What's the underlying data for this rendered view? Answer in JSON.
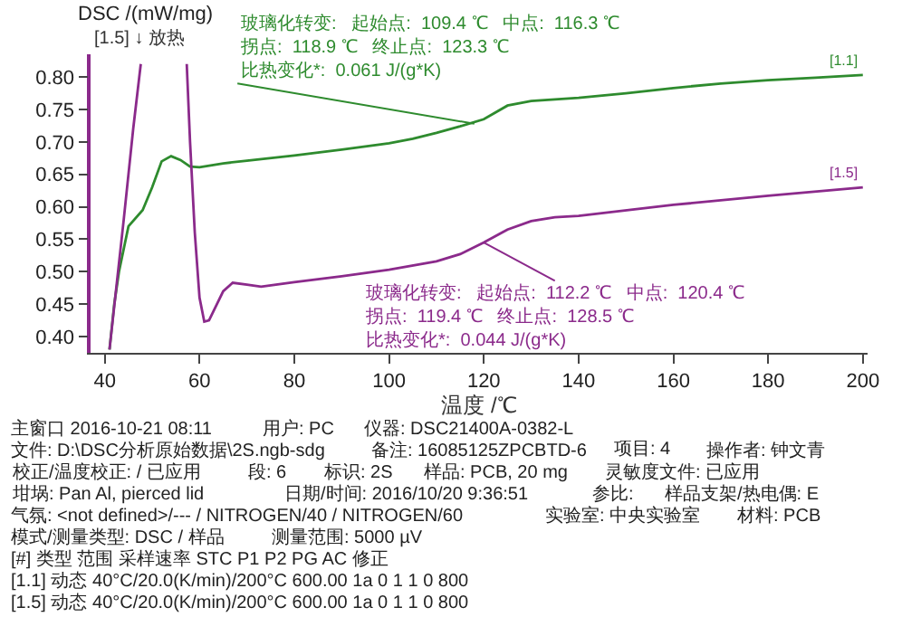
{
  "chart_data": {
    "type": "line",
    "subtitle": "[1.5] ↓ 放热",
    "xlabel": "温度 /℃",
    "ylabel": "DSC /(mW/mg)",
    "xlim": [
      37,
      201
    ],
    "xticks": [
      40,
      60,
      80,
      100,
      120,
      140,
      160,
      180,
      200
    ],
    "ylim": [
      0.375,
      0.835
    ],
    "yticks": [
      {
        "value": 0.4,
        "label": "0.40"
      },
      0.45,
      {
        "value": 0.5,
        "label": "0.50"
      },
      0.55,
      {
        "value": 0.6,
        "label": "0.60"
      },
      0.65,
      {
        "value": 0.7,
        "label": "0.70"
      },
      0.75,
      {
        "value": 0.8,
        "label": "0.80"
      }
    ],
    "legend": false,
    "marker": "none",
    "line_style": "solid",
    "series": [
      {
        "name": "[1.1]",
        "color": "#2e8b2e",
        "x": [
          41,
          42,
          43,
          45,
          48,
          50,
          52,
          54,
          56,
          58,
          60,
          65,
          70,
          80,
          90,
          100,
          105,
          110,
          115,
          120,
          125,
          130,
          140,
          150,
          160,
          170,
          180,
          190,
          200
        ],
        "values": [
          0.38,
          0.45,
          0.5,
          0.57,
          0.595,
          0.63,
          0.67,
          0.678,
          0.672,
          0.662,
          0.661,
          0.667,
          0.671,
          0.679,
          0.688,
          0.698,
          0.705,
          0.714,
          0.724,
          0.735,
          0.756,
          0.763,
          0.768,
          0.775,
          0.783,
          0.79,
          0.795,
          0.799,
          0.803
        ]
      },
      {
        "name": "[1.5]",
        "color": "#8b2a8b",
        "x": [
          41,
          44,
          46,
          47.6,
          52,
          57.3,
          58,
          59,
          60,
          61,
          62,
          63,
          65,
          67,
          70,
          73,
          80,
          90,
          100,
          110,
          115,
          120,
          125,
          130,
          135,
          140,
          160,
          180,
          200
        ],
        "values": [
          0.38,
          0.58,
          0.72,
          0.82,
          null,
          0.82,
          0.7,
          0.56,
          0.46,
          0.423,
          0.425,
          0.44,
          0.47,
          0.483,
          0.48,
          0.477,
          0.484,
          0.493,
          0.503,
          0.516,
          0.527,
          0.545,
          0.565,
          0.578,
          0.584,
          0.586,
          0.603,
          0.617,
          0.63
        ]
      }
    ],
    "annotations": [
      {
        "text": "玻璃化转变:\n起始点:  109.4 ℃\n中点:  116.3 ℃\n拐点:  118.9 ℃\n终止点:  123.3 ℃\n比热变化*:  0.061 J/(g*K)",
        "x": 118,
        "y": 0.728
      },
      {
        "text": "玻璃化转变:\n起始点:  112.2 ℃\n中点:  120.4 ℃\n拐点:  119.4 ℃\n终止点:  128.5 ℃\n比热变化*:  0.044 J/(g*K)",
        "x": 120,
        "y": 0.545
      },
      "主窗口 2016-10-21 08:11",
      "用户: PC",
      "仪器: DSC21400A-0382-L",
      "文件: D:\\DSC分析原始数据\\2S.ngb-sdg",
      "备注: 16085125ZPCBTD-6",
      "项目: 4",
      "操作者: 钟文青",
      "校正/温度校正: / 已应用",
      "段: 6",
      "标识: 2S",
      "样品: PCB, 20 mg",
      "灵敏度文件: 已应用",
      "坩埚: Pan Al, pierced lid",
      "日期/时间: 2016/10/20 9:36:51",
      "参比:",
      "样品支架/热电偶: E",
      "气氛: <not defined>/--- / NITROGEN/40 / NITROGEN/60",
      "实验室: 中央实验室",
      "材料: PCB",
      "模式/测量类型: DSC / 样品",
      "测量范围: 5000 µV",
      "[#] 类型 范围 采样速率 STC P1 P2 PG AC 修正",
      "[1.1] 动态 40°C/20.0(K/min)/200°C 600.00 1a 0 1 1 0 800",
      "[1.5] 动态 40°C/20.0(K/min)/200°C 600.00 1a 0 1 1 0 800"
    ]
  }
}
